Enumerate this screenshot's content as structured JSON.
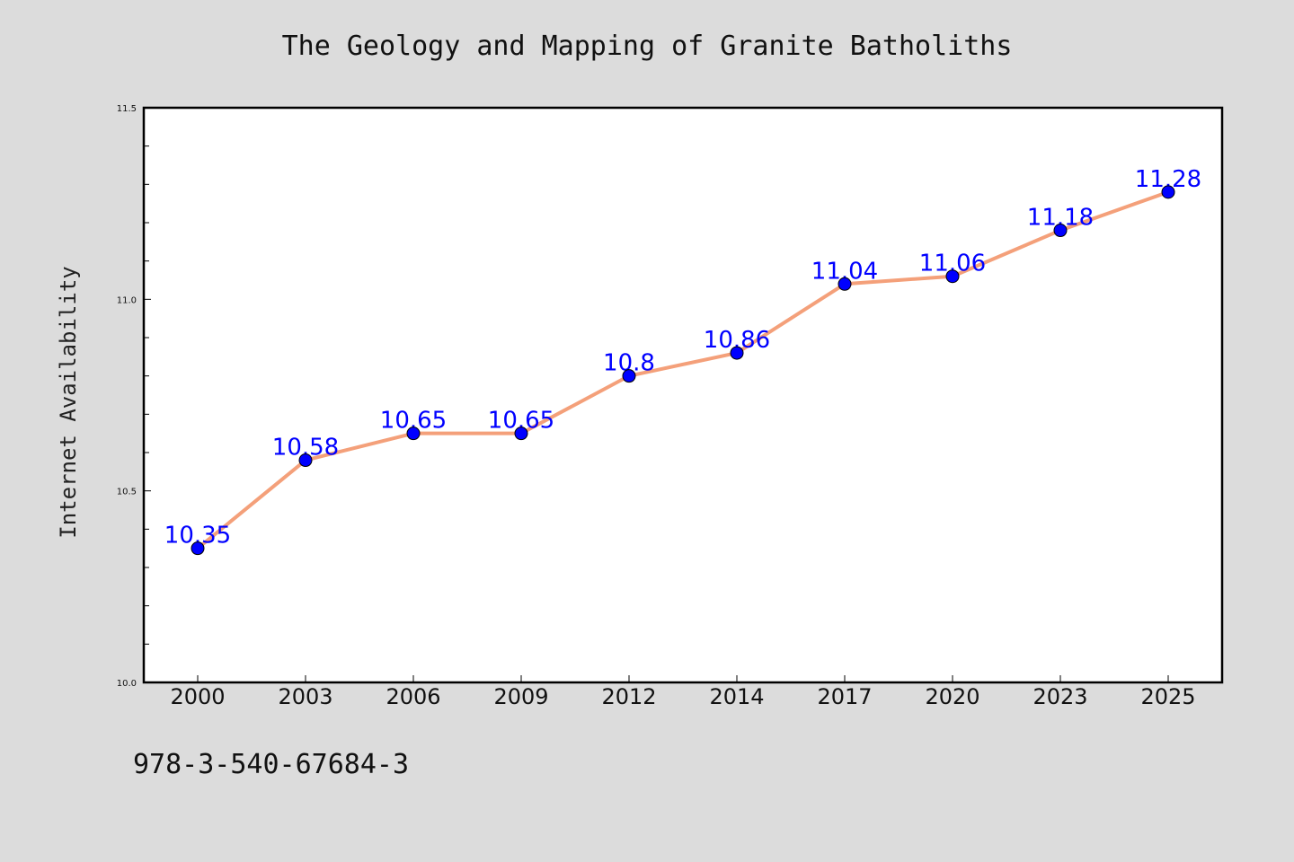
{
  "colors": {
    "background": "#dcdcdc",
    "plot_background": "#ffffff",
    "line": "#f4a07a",
    "marker": "#0000ff",
    "data_label": "#0000ff"
  },
  "footnote": "978-3-540-67684-3",
  "chart_data": {
    "type": "line",
    "title": "The Geology and Mapping of Granite Batholiths",
    "xlabel": "",
    "ylabel": "Internet Availability",
    "categories": [
      "2000",
      "2003",
      "2006",
      "2009",
      "2012",
      "2014",
      "2017",
      "2020",
      "2023",
      "2025"
    ],
    "series": [
      {
        "values": [
          10.35,
          10.58,
          10.65,
          10.65,
          10.8,
          10.86,
          11.04,
          11.06,
          11.18,
          11.28
        ],
        "labels": [
          "10.35",
          "10.58",
          "10.65",
          "10.65",
          "10.8",
          "10.86",
          "11.04",
          "11.06",
          "11.18",
          "11.28"
        ]
      }
    ],
    "ylim": [
      10.0,
      11.5
    ],
    "yticks": [
      "10.0",
      "10.5",
      "11.0",
      "11.5"
    ],
    "grid": false,
    "legend": "none"
  }
}
